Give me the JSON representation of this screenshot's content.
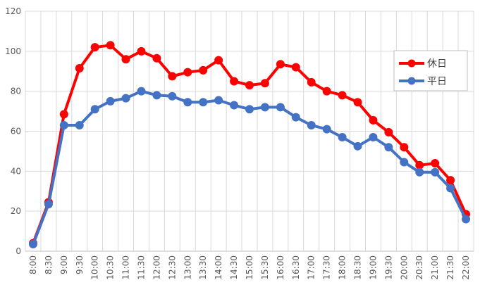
{
  "chart_data": {
    "type": "line",
    "title": "",
    "xlabel": "",
    "ylabel": "",
    "ylim": [
      0,
      120
    ],
    "yticks": [
      "0",
      "20",
      "40",
      "60",
      "80",
      "100",
      "120"
    ],
    "grid": true,
    "legend_position": "right",
    "categories": [
      "8:00",
      "8:30",
      "9:00",
      "9:30",
      "10:00",
      "10:30",
      "11:00",
      "11:30",
      "12:00",
      "12:30",
      "13:00",
      "13:30",
      "14:00",
      "14:30",
      "15:00",
      "15:30",
      "16:00",
      "16:30",
      "17:00",
      "17:30",
      "18:00",
      "18:30",
      "19:00",
      "19:30",
      "20:00",
      "20:30",
      "21:00",
      "21:30",
      "22:00"
    ],
    "series": [
      {
        "name": "休日",
        "color": "#ff0000",
        "values": [
          4,
          24.5,
          68.5,
          91.5,
          102,
          103,
          96,
          100,
          96.5,
          87.5,
          89.5,
          90.5,
          95.5,
          85,
          83,
          84,
          93.5,
          92,
          84.5,
          80,
          78,
          74.5,
          65.5,
          59.5,
          52,
          43,
          44,
          35.5,
          18.5
        ]
      },
      {
        "name": "平日",
        "color": "#4472c4",
        "values": [
          3.5,
          23.5,
          63,
          63,
          71,
          75,
          76.5,
          80,
          78,
          77.5,
          74.5,
          74.5,
          75.5,
          73,
          71,
          72,
          72,
          67,
          63,
          61,
          57,
          52.5,
          57,
          52,
          44.5,
          39.5,
          39.5,
          31.5,
          16
        ]
      }
    ]
  }
}
